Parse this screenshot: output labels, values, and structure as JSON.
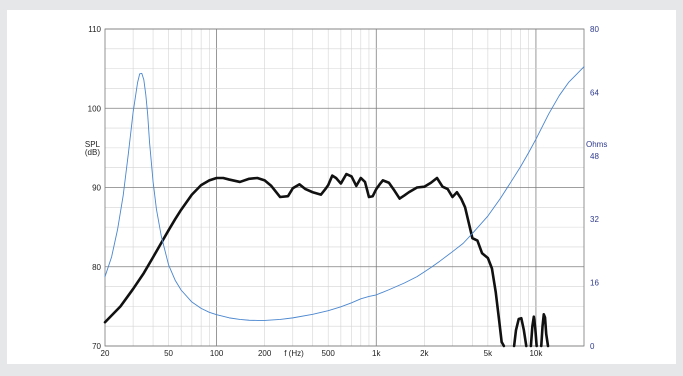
{
  "chart_data": {
    "type": "line",
    "title": "",
    "xlabel": "f (Hz)",
    "ylabel": "SPL (dB)",
    "ylabel_left_lines": [
      "SPL",
      "(dB)"
    ],
    "ylabel_right": "Ohms",
    "x_scale": "log",
    "xlim": [
      20,
      20000
    ],
    "ylim_left": [
      70,
      110
    ],
    "ylim_right": [
      0,
      80
    ],
    "grid": true,
    "x_tick_labels": [
      {
        "v": 20,
        "t": "20"
      },
      {
        "v": 50,
        "t": "50"
      },
      {
        "v": 100,
        "t": "100"
      },
      {
        "v": 200,
        "t": "200"
      },
      {
        "v": 500,
        "t": "500"
      },
      {
        "v": 1000,
        "t": "1k"
      },
      {
        "v": 2000,
        "t": "2k"
      },
      {
        "v": 5000,
        "t": "5k"
      },
      {
        "v": 10000,
        "t": "10k"
      }
    ],
    "y_left_ticks": [
      70,
      80,
      90,
      100,
      110
    ],
    "y_right_ticks": [
      0,
      16,
      32,
      48,
      64,
      80
    ],
    "series": [
      {
        "axis": "left",
        "color": "#111111",
        "x": [
          20,
          25,
          30,
          35,
          40,
          45,
          50,
          55,
          60,
          70,
          80,
          90,
          100,
          110,
          120,
          140,
          160,
          180,
          200,
          220,
          250,
          280,
          300,
          330,
          360,
          400,
          450,
          480,
          500,
          530,
          560,
          600,
          650,
          700,
          750,
          780,
          800,
          850,
          900,
          950,
          1000,
          1050,
          1100,
          1200,
          1300,
          1400,
          1500,
          1600,
          1800,
          2000,
          2200,
          2400,
          2600,
          2800,
          3000,
          3200,
          3400,
          3600,
          3800,
          4000,
          4300,
          4600,
          5000,
          5300,
          5600,
          5900,
          6100,
          6300
        ],
        "values": [
          73,
          75,
          77.2,
          79.2,
          81.2,
          83,
          84.6,
          86,
          87.2,
          89.1,
          90.3,
          90.9,
          91.2,
          91.2,
          91.0,
          90.7,
          91.1,
          91.2,
          90.9,
          90.2,
          88.8,
          88.9,
          89.9,
          90.4,
          89.8,
          89.4,
          89.1,
          89.8,
          90.3,
          91.5,
          91.2,
          90.5,
          91.7,
          91.4,
          90.2,
          90.8,
          91.2,
          90.7,
          88.8,
          88.9,
          89.8,
          90.4,
          90.9,
          90.6,
          89.6,
          88.6,
          89.0,
          89.4,
          90.0,
          90.1,
          90.6,
          91.2,
          90.1,
          89.8,
          88.8,
          89.4,
          88.6,
          87.5,
          85.5,
          83.6,
          83.3,
          81.7,
          81.1,
          79.8,
          76.8,
          73.0,
          70.5,
          69.0
        ]
      },
      {
        "axis": "left",
        "color": "#111111",
        "x": [
          7300,
          7500,
          7800,
          8100,
          8400,
          8700
        ],
        "values": [
          69.5,
          72.0,
          73.4,
          73.5,
          72.0,
          69.5
        ]
      },
      {
        "axis": "left",
        "color": "#111111",
        "x": [
          9300,
          9500,
          9700,
          9900,
          10100
        ],
        "values": [
          69.6,
          72.5,
          73.7,
          72.3,
          69.6
        ]
      },
      {
        "axis": "left",
        "color": "#111111",
        "x": [
          10800,
          11000,
          11200,
          11400,
          11600,
          11900
        ],
        "values": [
          69.6,
          72.5,
          74.0,
          73.6,
          71.5,
          69.6
        ]
      },
      {
        "axis": "right",
        "color": "#4a86cf",
        "x": [
          20,
          22,
          24,
          26,
          28,
          30,
          32,
          33,
          34,
          35,
          36,
          37,
          38,
          40,
          42,
          45,
          50,
          55,
          60,
          70,
          80,
          90,
          100,
          120,
          140,
          160,
          180,
          200,
          250,
          300,
          400,
          500,
          600,
          700,
          800,
          900,
          1000,
          1200,
          1500,
          1800,
          2000,
          2200,
          2500,
          3000,
          3500,
          4000,
          5000,
          6000,
          7000,
          8000,
          9000,
          10000,
          12000,
          14000,
          16000,
          18000,
          20000
        ],
        "values": [
          17.5,
          22.5,
          29.5,
          38,
          48.5,
          59,
          66.5,
          68.7,
          68.8,
          67.2,
          63.5,
          58.5,
          51.5,
          41.5,
          34.5,
          27.8,
          20.5,
          16.6,
          14.1,
          11.1,
          9.5,
          8.5,
          7.9,
          7.1,
          6.7,
          6.5,
          6.45,
          6.45,
          6.7,
          7.1,
          8.0,
          8.9,
          9.9,
          10.9,
          11.9,
          12.5,
          12.9,
          14.2,
          15.9,
          17.5,
          18.7,
          19.8,
          21.4,
          23.8,
          25.9,
          28.4,
          32.8,
          37.3,
          41.5,
          45.2,
          48.8,
          52.2,
          58.5,
          63.2,
          66.5,
          68.6,
          70.5
        ]
      }
    ]
  },
  "colors": {
    "page_background": "#e6e7e9",
    "plot_background": "#ffffff",
    "grid_minor": "#d4d4d4",
    "grid_major": "#7f7f7f",
    "spl_curve": "#111111",
    "impedance_curve": "#4a86cf",
    "ohms_axis_text": "#2e3a8c"
  }
}
